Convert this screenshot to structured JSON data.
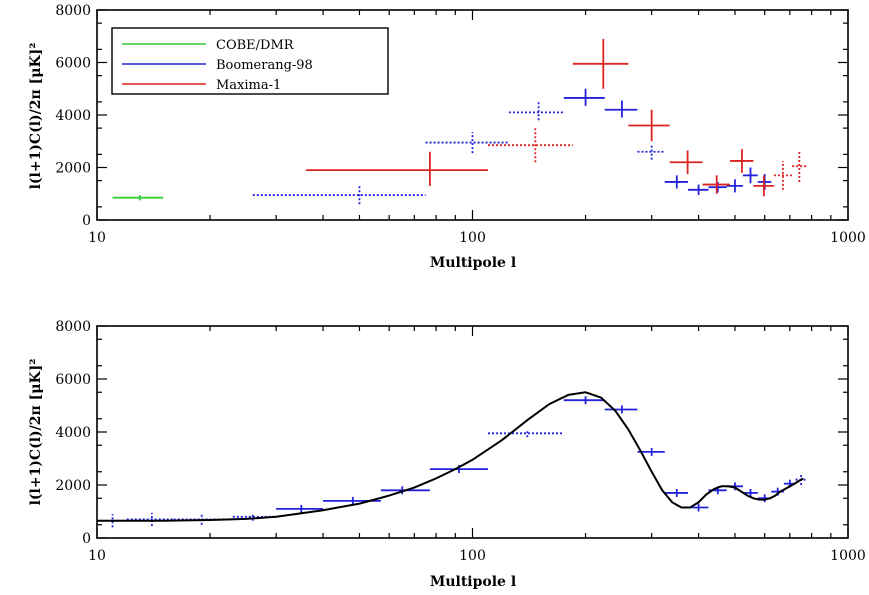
{
  "chart_data": [
    {
      "type": "scatter",
      "xlabel": "Multipole l",
      "ylabel": "l(l+1)C(l)/2π [μK]²",
      "xscale": "log",
      "xlim": [
        10,
        1000
      ],
      "ylim": [
        0,
        8000
      ],
      "xticks": [
        "10",
        "100",
        "1000"
      ],
      "yticks": [
        "0",
        "2000",
        "4000",
        "6000",
        "8000"
      ],
      "legend_position": "top-left",
      "series": [
        {
          "name": "COBE/DMR",
          "color": "#33cc33",
          "points": [
            {
              "x": 13,
              "y": 850,
              "xlo": 11,
              "xhi": 15,
              "ylo": 750,
              "yhi": 950,
              "dotted": false
            }
          ]
        },
        {
          "name": "Boomerang-98",
          "color": "#2222dd",
          "points": [
            {
              "x": 50,
              "y": 950,
              "xlo": 26,
              "xhi": 75,
              "ylo": 600,
              "yhi": 1350,
              "dotted": true
            },
            {
              "x": 100,
              "y": 2950,
              "xlo": 75,
              "xhi": 125,
              "ylo": 2550,
              "yhi": 3350,
              "dotted": true
            },
            {
              "x": 150,
              "y": 4100,
              "xlo": 125,
              "xhi": 175,
              "ylo": 3800,
              "yhi": 4500,
              "dotted": true
            },
            {
              "x": 200,
              "y": 4650,
              "xlo": 175,
              "xhi": 225,
              "ylo": 4350,
              "yhi": 5000,
              "dotted": false
            },
            {
              "x": 250,
              "y": 4200,
              "xlo": 225,
              "xhi": 275,
              "ylo": 3900,
              "yhi": 4550,
              "dotted": false
            },
            {
              "x": 300,
              "y": 2600,
              "xlo": 275,
              "xhi": 325,
              "ylo": 2300,
              "yhi": 2900,
              "dotted": true
            },
            {
              "x": 350,
              "y": 1450,
              "xlo": 325,
              "xhi": 375,
              "ylo": 1200,
              "yhi": 1700,
              "dotted": false
            },
            {
              "x": 400,
              "y": 1150,
              "xlo": 375,
              "xhi": 425,
              "ylo": 950,
              "yhi": 1350,
              "dotted": false
            },
            {
              "x": 450,
              "y": 1250,
              "xlo": 425,
              "xhi": 475,
              "ylo": 1050,
              "yhi": 1450,
              "dotted": false
            },
            {
              "x": 500,
              "y": 1300,
              "xlo": 475,
              "xhi": 525,
              "ylo": 1050,
              "yhi": 1550,
              "dotted": false
            },
            {
              "x": 550,
              "y": 1700,
              "xlo": 525,
              "xhi": 575,
              "ylo": 1400,
              "yhi": 2000,
              "dotted": false
            },
            {
              "x": 600,
              "y": 1450,
              "xlo": 575,
              "xhi": 625,
              "ylo": 1150,
              "yhi": 1750,
              "dotted": false
            }
          ]
        },
        {
          "name": "Maxima-1",
          "color": "#dd2222",
          "points": [
            {
              "x": 77,
              "y": 1900,
              "xlo": 36,
              "xhi": 110,
              "ylo": 1300,
              "yhi": 2600,
              "dotted": false
            },
            {
              "x": 147,
              "y": 2850,
              "xlo": 110,
              "xhi": 185,
              "ylo": 2200,
              "yhi": 3550,
              "dotted": true
            },
            {
              "x": 223,
              "y": 5950,
              "xlo": 185,
              "xhi": 260,
              "ylo": 5000,
              "yhi": 6900,
              "dotted": false
            },
            {
              "x": 300,
              "y": 3600,
              "xlo": 260,
              "xhi": 335,
              "ylo": 3000,
              "yhi": 4200,
              "dotted": false
            },
            {
              "x": 374,
              "y": 2200,
              "xlo": 335,
              "xhi": 410,
              "ylo": 1750,
              "yhi": 2650,
              "dotted": false
            },
            {
              "x": 447,
              "y": 1350,
              "xlo": 410,
              "xhi": 485,
              "ylo": 1000,
              "yhi": 1700,
              "dotted": false
            },
            {
              "x": 522,
              "y": 2250,
              "xlo": 485,
              "xhi": 560,
              "ylo": 1800,
              "yhi": 2700,
              "dotted": false
            },
            {
              "x": 597,
              "y": 1300,
              "xlo": 560,
              "xhi": 635,
              "ylo": 900,
              "yhi": 1700,
              "dotted": false
            },
            {
              "x": 671,
              "y": 1700,
              "xlo": 635,
              "xhi": 710,
              "ylo": 1150,
              "yhi": 2250,
              "dotted": true
            },
            {
              "x": 742,
              "y": 2050,
              "xlo": 710,
              "xhi": 775,
              "ylo": 1450,
              "yhi": 2650,
              "dotted": true
            }
          ]
        }
      ]
    },
    {
      "type": "scatter",
      "xlabel": "Multipole l",
      "ylabel": "l(l+1)C(l)/2π [μK]²",
      "xscale": "log",
      "xlim": [
        10,
        1000
      ],
      "ylim": [
        0,
        8000
      ],
      "xticks": [
        "10",
        "100",
        "1000"
      ],
      "yticks": [
        "0",
        "2000",
        "4000",
        "6000",
        "8000"
      ],
      "series": [
        {
          "color": "#2222dd",
          "points": [
            {
              "x": 11,
              "y": 650,
              "xlo": 10,
              "xhi": 12,
              "ylo": 400,
              "yhi": 900,
              "dotted": true
            },
            {
              "x": 14,
              "y": 700,
              "xlo": 12,
              "xhi": 16,
              "ylo": 450,
              "yhi": 950,
              "dotted": true
            },
            {
              "x": 19,
              "y": 700,
              "xlo": 16,
              "xhi": 23,
              "ylo": 500,
              "yhi": 900,
              "dotted": true
            },
            {
              "x": 26,
              "y": 800,
              "xlo": 23,
              "xhi": 30,
              "ylo": 650,
              "yhi": 950,
              "dotted": true
            },
            {
              "x": 35,
              "y": 1100,
              "xlo": 30,
              "xhi": 40,
              "ylo": 950,
              "yhi": 1250,
              "dotted": false
            },
            {
              "x": 48,
              "y": 1400,
              "xlo": 40,
              "xhi": 57,
              "ylo": 1250,
              "yhi": 1550,
              "dotted": false
            },
            {
              "x": 65,
              "y": 1800,
              "xlo": 57,
              "xhi": 77,
              "ylo": 1650,
              "yhi": 1950,
              "dotted": false
            },
            {
              "x": 92,
              "y": 2600,
              "xlo": 77,
              "xhi": 110,
              "ylo": 2450,
              "yhi": 2750,
              "dotted": false
            },
            {
              "x": 140,
              "y": 3950,
              "xlo": 110,
              "xhi": 175,
              "ylo": 3800,
              "yhi": 4100,
              "dotted": true
            },
            {
              "x": 200,
              "y": 5200,
              "xlo": 175,
              "xhi": 225,
              "ylo": 5050,
              "yhi": 5350,
              "dotted": false
            },
            {
              "x": 250,
              "y": 4850,
              "xlo": 225,
              "xhi": 275,
              "ylo": 4700,
              "yhi": 5000,
              "dotted": false
            },
            {
              "x": 300,
              "y": 3250,
              "xlo": 275,
              "xhi": 325,
              "ylo": 3100,
              "yhi": 3400,
              "dotted": false
            },
            {
              "x": 350,
              "y": 1700,
              "xlo": 325,
              "xhi": 375,
              "ylo": 1550,
              "yhi": 1850,
              "dotted": false
            },
            {
              "x": 400,
              "y": 1150,
              "xlo": 375,
              "xhi": 425,
              "ylo": 1000,
              "yhi": 1300,
              "dotted": false
            },
            {
              "x": 450,
              "y": 1800,
              "xlo": 425,
              "xhi": 475,
              "ylo": 1650,
              "yhi": 1950,
              "dotted": false
            },
            {
              "x": 500,
              "y": 1950,
              "xlo": 475,
              "xhi": 525,
              "ylo": 1800,
              "yhi": 2100,
              "dotted": false
            },
            {
              "x": 550,
              "y": 1700,
              "xlo": 525,
              "xhi": 575,
              "ylo": 1550,
              "yhi": 1850,
              "dotted": false
            },
            {
              "x": 600,
              "y": 1500,
              "xlo": 575,
              "xhi": 625,
              "ylo": 1350,
              "yhi": 1650,
              "dotted": false
            },
            {
              "x": 650,
              "y": 1750,
              "xlo": 625,
              "xhi": 675,
              "ylo": 1600,
              "yhi": 1900,
              "dotted": false
            },
            {
              "x": 700,
              "y": 2050,
              "xlo": 675,
              "xhi": 725,
              "ylo": 1900,
              "yhi": 2200,
              "dotted": false
            },
            {
              "x": 750,
              "y": 2200,
              "xlo": 725,
              "xhi": 775,
              "ylo": 2000,
              "yhi": 2400,
              "dotted": true
            }
          ]
        },
        {
          "color": "#000000",
          "line": true,
          "x": [
            10,
            15,
            20,
            25,
            30,
            40,
            50,
            60,
            70,
            80,
            90,
            100,
            120,
            140,
            160,
            180,
            200,
            220,
            240,
            260,
            280,
            300,
            320,
            340,
            360,
            380,
            400,
            420,
            440,
            460,
            480,
            500,
            520,
            540,
            560,
            580,
            600,
            620,
            640,
            660,
            680,
            700,
            720,
            740,
            760
          ],
          "y": [
            650,
            650,
            680,
            720,
            800,
            1050,
            1300,
            1600,
            1900,
            2250,
            2600,
            2950,
            3700,
            4450,
            5050,
            5400,
            5500,
            5300,
            4800,
            4100,
            3300,
            2500,
            1800,
            1350,
            1150,
            1150,
            1350,
            1650,
            1850,
            1950,
            1950,
            1900,
            1750,
            1600,
            1500,
            1450,
            1450,
            1500,
            1600,
            1750,
            1850,
            1950,
            2050,
            2150,
            2250
          ]
        }
      ]
    }
  ]
}
